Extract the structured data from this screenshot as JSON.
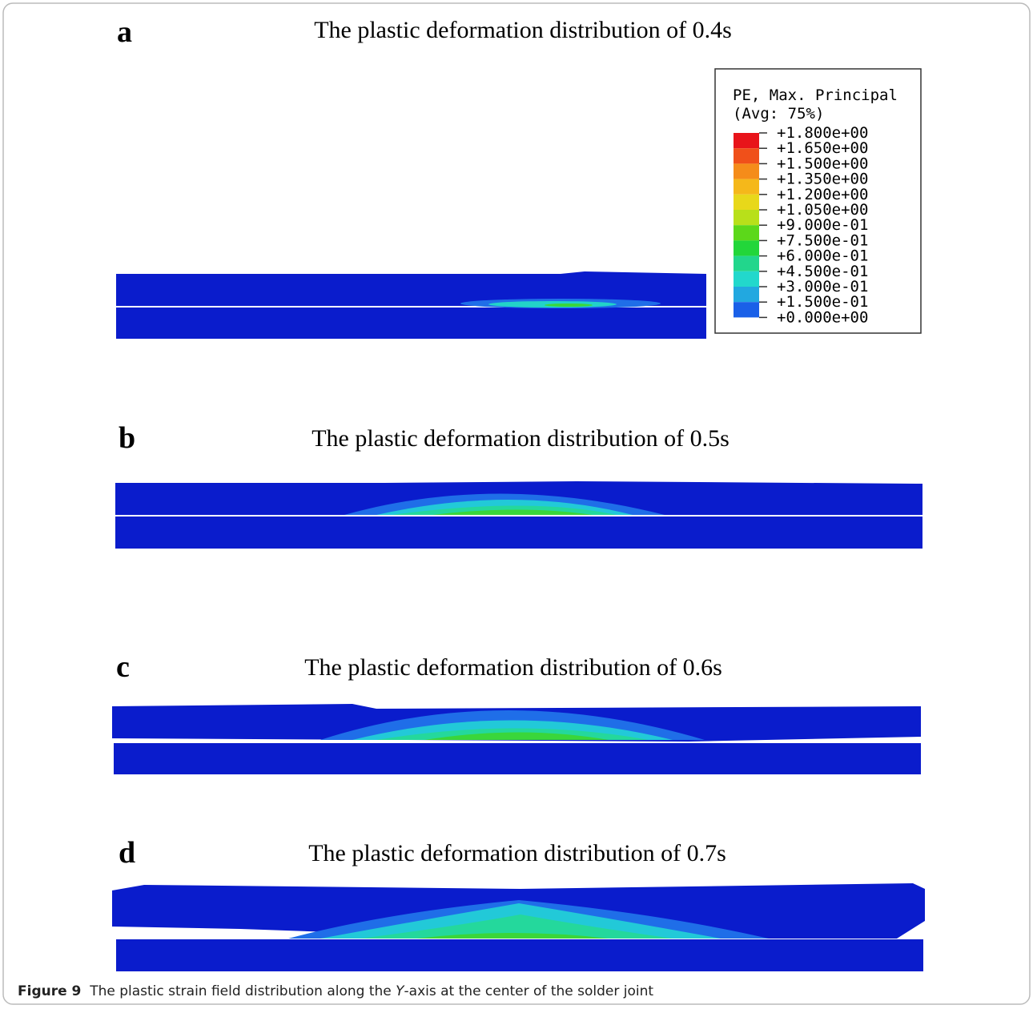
{
  "panels": [
    {
      "letter": "a",
      "title": "The plastic deformation distribution of 0.4s"
    },
    {
      "letter": "b",
      "title": "The plastic deformation distribution of 0.5s"
    },
    {
      "letter": "c",
      "title": "The plastic deformation distribution of 0.6s"
    },
    {
      "letter": "d",
      "title": "The plastic deformation distribution of 0.7s"
    }
  ],
  "legend": {
    "title": [
      "PE, Max. Principal",
      "(Avg: 75%)"
    ],
    "levels": [
      "+1.800e+00",
      "+1.650e+00",
      "+1.500e+00",
      "+1.350e+00",
      "+1.200e+00",
      "+1.050e+00",
      "+9.000e-01",
      "+7.500e-01",
      "+6.000e-01",
      "+4.500e-01",
      "+3.000e-01",
      "+1.500e-01",
      "+0.000e+00"
    ]
  },
  "caption": {
    "label": "Figure 9",
    "text_before": "The plastic strain field distribution along the ",
    "italic": "Y",
    "text_after": "-axis at the center of the solder joint"
  }
}
